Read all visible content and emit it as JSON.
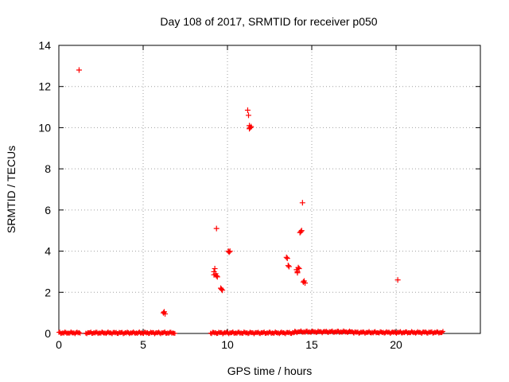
{
  "chart_data": {
    "type": "scatter",
    "title": "Day 108 of 2017, SRMTID for receiver p050",
    "xlabel": "GPS time / hours",
    "ylabel": "SRMTID / TECUs",
    "xlim": [
      0,
      25
    ],
    "ylim": [
      0,
      14
    ],
    "xticks": [
      0,
      5,
      10,
      15,
      20
    ],
    "yticks": [
      0,
      2,
      4,
      6,
      8,
      10,
      12,
      14
    ],
    "grid": true,
    "marker": "+",
    "color": "#ff0000",
    "baseline_segments": [
      [
        0.0,
        1.3,
        0.03
      ],
      [
        1.6,
        6.9,
        0.03
      ],
      [
        9.0,
        14.0,
        0.03
      ],
      [
        14.0,
        17.5,
        0.08
      ],
      [
        17.5,
        22.8,
        0.05
      ]
    ],
    "points": [
      [
        1.2,
        12.8
      ],
      [
        6.2,
        1.0
      ],
      [
        6.25,
        1.05
      ],
      [
        6.3,
        0.95
      ],
      [
        9.2,
        3.0
      ],
      [
        9.25,
        3.15
      ],
      [
        9.2,
        2.85
      ],
      [
        9.3,
        2.9
      ],
      [
        9.35,
        2.8
      ],
      [
        9.4,
        2.75
      ],
      [
        9.35,
        5.1
      ],
      [
        9.6,
        2.2
      ],
      [
        9.65,
        2.15
      ],
      [
        9.7,
        2.1
      ],
      [
        10.05,
        4.0
      ],
      [
        10.1,
        3.95
      ],
      [
        10.15,
        4.0
      ],
      [
        11.2,
        10.85
      ],
      [
        11.25,
        10.6
      ],
      [
        11.3,
        10.1
      ],
      [
        11.35,
        10.0
      ],
      [
        11.4,
        10.05
      ],
      [
        11.3,
        9.95
      ],
      [
        13.5,
        3.7
      ],
      [
        13.55,
        3.65
      ],
      [
        13.6,
        3.3
      ],
      [
        13.65,
        3.25
      ],
      [
        14.1,
        3.1
      ],
      [
        14.15,
        3.0
      ],
      [
        14.2,
        3.2
      ],
      [
        14.25,
        3.15
      ],
      [
        14.15,
        2.95
      ],
      [
        14.3,
        4.9
      ],
      [
        14.35,
        4.95
      ],
      [
        14.4,
        5.0
      ],
      [
        14.45,
        6.35
      ],
      [
        14.5,
        2.5
      ],
      [
        14.55,
        2.55
      ],
      [
        14.6,
        2.45
      ],
      [
        20.1,
        2.6
      ]
    ]
  }
}
